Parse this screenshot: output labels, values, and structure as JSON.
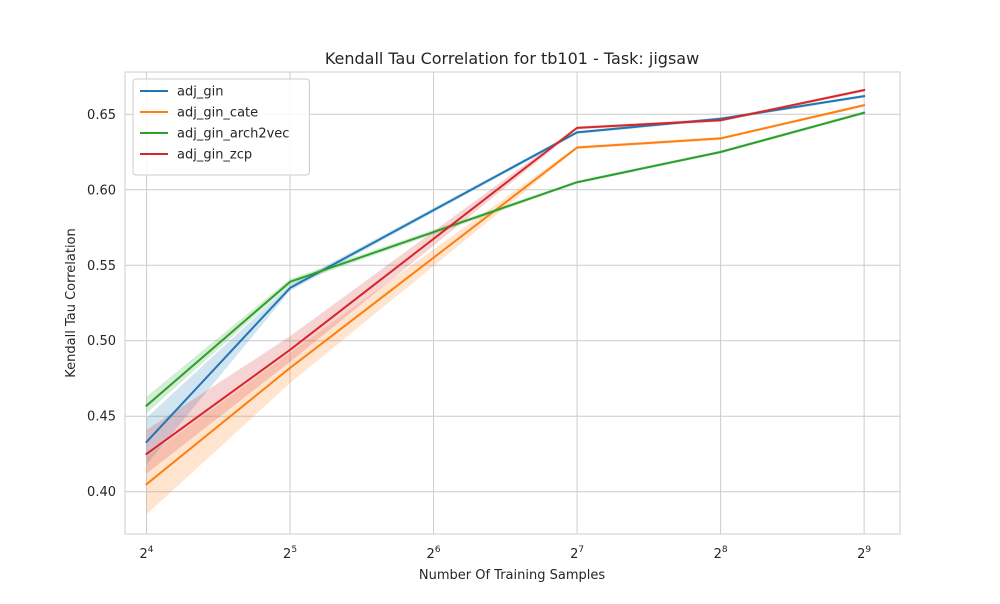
{
  "chart_data": {
    "type": "line",
    "title": "Kendall Tau Correlation for tb101 - Task: jigsaw",
    "xlabel": "Number Of Training Samples",
    "ylabel": "Kendall Tau Correlation",
    "x_scale": "log2",
    "x": [
      16,
      32,
      64,
      128,
      256,
      512
    ],
    "x_ticks": [
      {
        "base": "2",
        "exp": "4"
      },
      {
        "base": "2",
        "exp": "5"
      },
      {
        "base": "2",
        "exp": "6"
      },
      {
        "base": "2",
        "exp": "7"
      },
      {
        "base": "2",
        "exp": "8"
      },
      {
        "base": "2",
        "exp": "9"
      }
    ],
    "y_ticks": [
      "0.40",
      "0.45",
      "0.50",
      "0.55",
      "0.60",
      "0.65"
    ],
    "ylim": [
      0.372,
      0.678
    ],
    "xlim_exp": [
      3.85,
      9.25
    ],
    "grid": true,
    "legend_position": "upper left",
    "series": [
      {
        "name": "adj_gin",
        "color": "#1f77b4",
        "x": [
          16,
          32,
          128,
          256,
          512
        ],
        "values": [
          0.433,
          0.535,
          0.638,
          0.647,
          0.662
        ],
        "band_lower": [
          0.418,
          0.533,
          0.637,
          0.646,
          0.661
        ],
        "band_upper": [
          0.449,
          0.537,
          0.639,
          0.648,
          0.663
        ]
      },
      {
        "name": "adj_gin_cate",
        "color": "#ff7f0e",
        "x": [
          16,
          32,
          128,
          256,
          512
        ],
        "values": [
          0.405,
          0.482,
          0.628,
          0.634,
          0.656
        ],
        "band_lower": [
          0.385,
          0.472,
          0.627,
          0.633,
          0.655
        ],
        "band_upper": [
          0.423,
          0.492,
          0.629,
          0.635,
          0.657
        ]
      },
      {
        "name": "adj_gin_arch2vec",
        "color": "#2ca02c",
        "x": [
          16,
          32,
          128,
          256,
          512
        ],
        "values": [
          0.457,
          0.539,
          0.605,
          0.625,
          0.651
        ],
        "band_lower": [
          0.452,
          0.537,
          0.604,
          0.624,
          0.65
        ],
        "band_upper": [
          0.463,
          0.541,
          0.606,
          0.626,
          0.652
        ]
      },
      {
        "name": "adj_gin_zcp",
        "color": "#d62728",
        "x": [
          16,
          32,
          128,
          256,
          512
        ],
        "values": [
          0.425,
          0.494,
          0.641,
          0.646,
          0.666
        ],
        "band_lower": [
          0.412,
          0.486,
          0.64,
          0.645,
          0.665
        ],
        "band_upper": [
          0.441,
          0.503,
          0.642,
          0.647,
          0.667
        ]
      }
    ]
  }
}
